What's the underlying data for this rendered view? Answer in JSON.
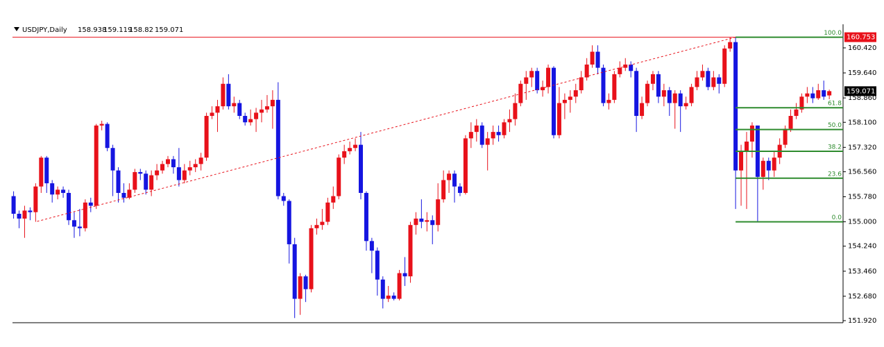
{
  "chart_data": {
    "type": "candlestick",
    "title": "USDJPY,Daily",
    "bull_color": "#e8111a",
    "bear_color": "#1515e0",
    "ylim": [
      151.855,
      161.155
    ],
    "xlim": [
      -0.2,
      150.5
    ],
    "yticks": [
      {
        "value": 160.42,
        "label": "160.420"
      },
      {
        "value": 159.64,
        "label": "159.640"
      },
      {
        "value": 158.86,
        "label": "158.860"
      },
      {
        "value": 158.1,
        "label": "158.100"
      },
      {
        "value": 157.32,
        "label": "157.320"
      },
      {
        "value": 156.56,
        "label": "156.560"
      },
      {
        "value": 155.78,
        "label": "155.780"
      },
      {
        "value": 155.0,
        "label": "155.000"
      },
      {
        "value": 154.24,
        "label": "154.240"
      },
      {
        "value": 153.46,
        "label": "153.460"
      },
      {
        "value": 152.68,
        "label": "152.680"
      },
      {
        "value": 151.92,
        "label": "151.920"
      }
    ],
    "fibonacci": {
      "color": "#2e8b2e",
      "low": 155.0,
      "high": 160.753,
      "levels": [
        {
          "value": 100,
          "label": "100.0"
        },
        61.8,
        {
          "value": 50,
          "label": "50.0"
        },
        38.2,
        23.6,
        {
          "value": 0,
          "label": "0.0"
        }
      ]
    },
    "ohlc": [
      [
        155.8,
        155.95,
        155.1,
        155.25
      ],
      [
        155.25,
        155.35,
        154.8,
        155.1
      ],
      [
        155.1,
        155.5,
        154.5,
        155.35
      ],
      [
        155.35,
        155.45,
        155.05,
        155.3
      ],
      [
        155.3,
        156.2,
        155.0,
        156.1
      ],
      [
        156.1,
        157.05,
        155.9,
        157.0
      ],
      [
        157.0,
        157.05,
        155.9,
        156.2
      ],
      [
        156.2,
        156.3,
        155.6,
        155.85
      ],
      [
        155.85,
        156.1,
        155.7,
        156.0
      ],
      [
        156.0,
        156.1,
        155.75,
        155.9
      ],
      [
        155.9,
        156.0,
        154.9,
        155.05
      ],
      [
        155.05,
        155.3,
        154.5,
        154.85
      ],
      [
        154.85,
        155.4,
        154.55,
        154.8
      ],
      [
        154.8,
        155.7,
        154.7,
        155.6
      ],
      [
        155.6,
        155.75,
        155.3,
        155.5
      ],
      [
        155.5,
        158.05,
        155.4,
        158.0
      ],
      [
        158.0,
        158.15,
        157.85,
        158.05
      ],
      [
        158.05,
        158.1,
        157.2,
        157.3
      ],
      [
        157.3,
        157.4,
        155.8,
        156.6
      ],
      [
        156.6,
        156.7,
        155.6,
        155.9
      ],
      [
        155.9,
        156.2,
        155.6,
        155.75
      ],
      [
        155.75,
        156.2,
        155.7,
        156.0
      ],
      [
        156.0,
        156.65,
        155.9,
        156.55
      ],
      [
        156.55,
        156.65,
        156.3,
        156.5
      ],
      [
        156.5,
        156.6,
        155.85,
        156.0
      ],
      [
        156.0,
        156.6,
        155.8,
        156.45
      ],
      [
        156.45,
        156.8,
        156.3,
        156.6
      ],
      [
        156.6,
        156.9,
        156.5,
        156.8
      ],
      [
        156.8,
        157.05,
        156.7,
        156.95
      ],
      [
        156.95,
        157.05,
        156.5,
        156.7
      ],
      [
        156.7,
        157.3,
        156.1,
        156.3
      ],
      [
        156.3,
        156.8,
        156.2,
        156.6
      ],
      [
        156.6,
        156.9,
        156.45,
        156.7
      ],
      [
        156.7,
        156.95,
        156.55,
        156.8
      ],
      [
        156.8,
        157.15,
        156.6,
        157.0
      ],
      [
        157.0,
        158.4,
        156.9,
        158.3
      ],
      [
        158.3,
        158.6,
        158.2,
        158.4
      ],
      [
        158.4,
        158.8,
        157.8,
        158.6
      ],
      [
        158.6,
        159.5,
        158.5,
        159.3
      ],
      [
        159.3,
        159.6,
        158.5,
        158.6
      ],
      [
        158.6,
        158.9,
        158.4,
        158.7
      ],
      [
        158.7,
        158.8,
        158.2,
        158.3
      ],
      [
        158.3,
        158.4,
        158.0,
        158.1
      ],
      [
        158.1,
        158.5,
        158.0,
        158.2
      ],
      [
        158.2,
        158.55,
        157.8,
        158.4
      ],
      [
        158.4,
        158.8,
        158.1,
        158.5
      ],
      [
        158.5,
        158.95,
        158.4,
        158.6
      ],
      [
        158.6,
        159.1,
        157.9,
        158.8
      ],
      [
        158.8,
        159.35,
        155.7,
        155.8
      ],
      [
        155.8,
        155.9,
        155.5,
        155.65
      ],
      [
        155.65,
        155.7,
        153.7,
        154.3
      ],
      [
        154.3,
        154.5,
        152.0,
        152.6
      ],
      [
        152.6,
        153.4,
        152.1,
        153.3
      ],
      [
        153.3,
        153.35,
        152.5,
        152.9
      ],
      [
        152.9,
        154.9,
        152.8,
        154.8
      ],
      [
        154.8,
        155.1,
        154.6,
        154.9
      ],
      [
        154.9,
        155.4,
        154.75,
        155.0
      ],
      [
        155.0,
        155.75,
        154.9,
        155.6
      ],
      [
        155.6,
        156.1,
        155.4,
        155.8
      ],
      [
        155.8,
        157.1,
        155.7,
        157.0
      ],
      [
        157.0,
        157.4,
        156.8,
        157.2
      ],
      [
        157.2,
        157.5,
        157.1,
        157.3
      ],
      [
        157.3,
        157.6,
        157.2,
        157.4
      ],
      [
        157.4,
        157.8,
        155.7,
        155.9
      ],
      [
        155.9,
        155.95,
        154.1,
        154.4
      ],
      [
        154.4,
        154.5,
        153.4,
        154.1
      ],
      [
        154.1,
        154.2,
        152.7,
        153.2
      ],
      [
        153.2,
        153.3,
        152.3,
        152.6
      ],
      [
        152.6,
        153.0,
        152.5,
        152.7
      ],
      [
        152.7,
        152.8,
        152.55,
        152.6
      ],
      [
        152.6,
        153.5,
        152.55,
        153.4
      ],
      [
        153.4,
        153.9,
        153.0,
        153.3
      ],
      [
        153.3,
        155.0,
        153.1,
        154.9
      ],
      [
        154.9,
        155.3,
        154.6,
        155.1
      ],
      [
        155.1,
        155.7,
        154.8,
        155.0
      ],
      [
        155.0,
        155.3,
        154.7,
        155.05
      ],
      [
        155.05,
        155.2,
        154.3,
        154.9
      ],
      [
        154.9,
        156.2,
        154.7,
        155.7
      ],
      [
        155.7,
        156.6,
        155.6,
        156.3
      ],
      [
        156.3,
        156.6,
        155.9,
        156.5
      ],
      [
        156.5,
        156.6,
        155.6,
        156.1
      ],
      [
        156.1,
        156.2,
        155.8,
        155.9
      ],
      [
        155.9,
        157.7,
        155.85,
        157.6
      ],
      [
        157.6,
        158.1,
        157.3,
        157.8
      ],
      [
        157.8,
        158.2,
        157.5,
        158.0
      ],
      [
        158.0,
        158.1,
        157.3,
        157.4
      ],
      [
        157.4,
        157.8,
        156.6,
        157.6
      ],
      [
        157.6,
        158.0,
        157.4,
        157.8
      ],
      [
        157.8,
        158.0,
        157.5,
        157.7
      ],
      [
        157.7,
        158.2,
        157.6,
        158.1
      ],
      [
        158.1,
        158.5,
        157.8,
        158.2
      ],
      [
        158.2,
        159.0,
        158.0,
        158.7
      ],
      [
        158.7,
        159.4,
        158.6,
        159.3
      ],
      [
        159.3,
        159.7,
        158.8,
        159.5
      ],
      [
        159.5,
        159.8,
        159.2,
        159.7
      ],
      [
        159.7,
        159.8,
        159.0,
        159.1
      ],
      [
        159.1,
        159.4,
        158.9,
        159.2
      ],
      [
        159.2,
        159.9,
        159.0,
        159.8
      ],
      [
        159.8,
        159.85,
        157.6,
        157.7
      ],
      [
        157.7,
        159.2,
        157.6,
        158.7
      ],
      [
        158.7,
        159.0,
        158.2,
        158.8
      ],
      [
        158.8,
        159.1,
        158.4,
        158.9
      ],
      [
        158.9,
        159.3,
        158.7,
        159.1
      ],
      [
        159.1,
        159.7,
        159.0,
        159.5
      ],
      [
        159.5,
        160.1,
        159.4,
        159.9
      ],
      [
        159.9,
        160.5,
        159.8,
        160.3
      ],
      [
        160.3,
        160.5,
        159.6,
        159.8
      ],
      [
        159.8,
        159.9,
        158.6,
        158.7
      ],
      [
        158.7,
        159.0,
        158.5,
        158.8
      ],
      [
        158.8,
        159.7,
        158.7,
        159.6
      ],
      [
        159.6,
        160.0,
        159.5,
        159.8
      ],
      [
        159.8,
        160.1,
        159.7,
        159.9
      ],
      [
        159.9,
        160.0,
        159.5,
        159.7
      ],
      [
        159.7,
        159.8,
        157.8,
        158.3
      ],
      [
        158.3,
        158.9,
        158.2,
        158.7
      ],
      [
        158.7,
        159.4,
        158.6,
        159.3
      ],
      [
        159.3,
        159.7,
        159.1,
        159.6
      ],
      [
        159.6,
        159.7,
        158.7,
        158.9
      ],
      [
        158.9,
        159.3,
        158.6,
        159.1
      ],
      [
        159.1,
        159.2,
        158.3,
        158.7
      ],
      [
        158.7,
        159.1,
        157.9,
        159.0
      ],
      [
        159.0,
        159.1,
        157.8,
        158.6
      ],
      [
        158.6,
        158.9,
        158.5,
        158.7
      ],
      [
        158.7,
        159.3,
        158.6,
        159.2
      ],
      [
        159.2,
        159.7,
        159.1,
        159.5
      ],
      [
        159.5,
        159.9,
        159.4,
        159.7
      ],
      [
        159.7,
        159.8,
        159.1,
        159.2
      ],
      [
        159.2,
        159.7,
        159.1,
        159.5
      ],
      [
        159.5,
        159.6,
        159.0,
        159.3
      ],
      [
        159.3,
        160.5,
        159.2,
        160.4
      ],
      [
        160.4,
        160.75,
        160.3,
        160.6
      ],
      [
        160.6,
        160.753,
        155.4,
        156.6
      ],
      [
        156.6,
        157.4,
        155.5,
        157.2
      ],
      [
        157.2,
        157.8,
        155.4,
        157.5
      ],
      [
        157.5,
        158.1,
        157.0,
        158.0
      ],
      [
        158.0,
        158.0,
        155.0,
        156.4
      ],
      [
        156.4,
        157.0,
        156.0,
        156.9
      ],
      [
        156.9,
        157.0,
        156.3,
        156.6
      ],
      [
        156.6,
        157.2,
        156.4,
        157.0
      ],
      [
        157.0,
        157.6,
        156.8,
        157.4
      ],
      [
        157.4,
        158.0,
        157.3,
        157.9
      ],
      [
        157.9,
        158.5,
        157.8,
        158.3
      ],
      [
        158.3,
        158.7,
        158.2,
        158.5
      ],
      [
        158.5,
        159.0,
        158.4,
        158.9
      ],
      [
        158.9,
        159.2,
        158.7,
        159.0
      ],
      [
        159.0,
        159.2,
        158.7,
        158.85
      ],
      [
        158.85,
        159.3,
        158.8,
        159.1
      ],
      [
        159.1,
        159.4,
        158.8,
        158.9
      ],
      [
        158.938,
        159.119,
        158.82,
        159.071
      ]
    ]
  }
}
